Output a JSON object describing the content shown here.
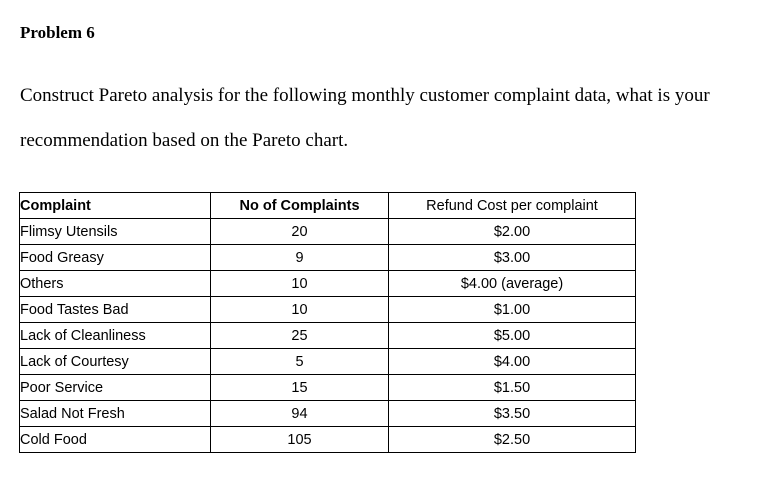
{
  "problem": {
    "title": "Problem 6",
    "line1": "Construct Pareto analysis for the following monthly customer complaint data, what is your",
    "line2": "recommendation based on the Pareto chart."
  },
  "table": {
    "headers": {
      "complaint": "Complaint",
      "count": "No of Complaints",
      "refund": "Refund Cost per complaint"
    },
    "rows": [
      {
        "complaint": "Flimsy Utensils",
        "count": "20",
        "refund": "$2.00"
      },
      {
        "complaint": "Food Greasy",
        "count": "9",
        "refund": "$3.00"
      },
      {
        "complaint": "Others",
        "count": "10",
        "refund": "$4.00 (average)"
      },
      {
        "complaint": "Food Tastes Bad",
        "count": "10",
        "refund": "$1.00"
      },
      {
        "complaint": "Lack of Cleanliness",
        "count": "25",
        "refund": "$5.00"
      },
      {
        "complaint": "Lack of Courtesy",
        "count": "5",
        "refund": "$4.00"
      },
      {
        "complaint": "Poor Service",
        "count": "15",
        "refund": "$1.50"
      },
      {
        "complaint": "Salad Not Fresh",
        "count": "94",
        "refund": "$3.50"
      },
      {
        "complaint": "Cold Food",
        "count": "105",
        "refund": "$2.50"
      }
    ]
  }
}
